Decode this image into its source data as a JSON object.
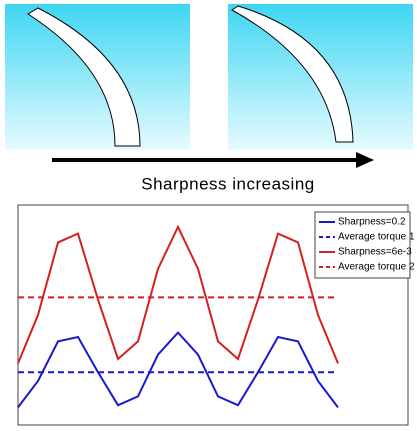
{
  "figure": {
    "caption": "Sharpness increasing"
  },
  "chart_data": {
    "type": "line",
    "x": [
      0,
      2,
      4,
      6,
      8,
      10,
      12,
      14,
      16,
      18,
      20,
      22,
      24,
      26,
      28,
      30,
      32
    ],
    "series": [
      {
        "name": "Sharpness=0.2",
        "color": "#1a1acc",
        "values": [
          8,
          20,
          38,
          40,
          24,
          9,
          13,
          32,
          42,
          32,
          13,
          9,
          24,
          40,
          38,
          20,
          8
        ]
      },
      {
        "name": "Average torque 1",
        "color": "#1a1acc",
        "dashed": true,
        "value": 24
      },
      {
        "name": "Sharpness=6e-3",
        "color": "#d42020",
        "values": [
          28,
          50,
          83,
          87,
          57,
          30,
          38,
          71,
          90,
          71,
          38,
          30,
          57,
          87,
          83,
          50,
          28
        ]
      },
      {
        "name": "Average torque 2",
        "color": "#d42020",
        "dashed": true,
        "value": 58
      }
    ],
    "xlim": [
      0,
      39
    ],
    "ylim": [
      0,
      100
    ],
    "legend": "upper right"
  }
}
